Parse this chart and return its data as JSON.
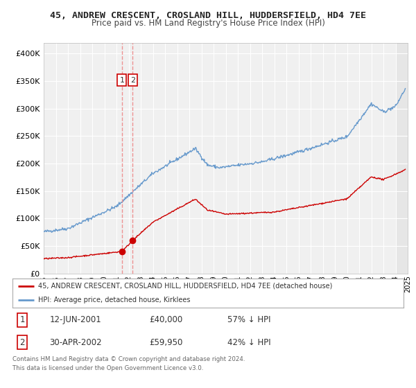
{
  "title": "45, ANDREW CRESCENT, CROSLAND HILL, HUDDERSFIELD, HD4 7EE",
  "subtitle": "Price paid vs. HM Land Registry's House Price Index (HPI)",
  "ylim": [
    0,
    420000
  ],
  "yticks": [
    0,
    50000,
    100000,
    150000,
    200000,
    250000,
    300000,
    350000,
    400000
  ],
  "ytick_labels": [
    "£0",
    "£50K",
    "£100K",
    "£150K",
    "£200K",
    "£250K",
    "£300K",
    "£350K",
    "£400K"
  ],
  "xlim": [
    1995,
    2025
  ],
  "red_line_label": "45, ANDREW CRESCENT, CROSLAND HILL, HUDDERSFIELD, HD4 7EE (detached house)",
  "blue_line_label": "HPI: Average price, detached house, Kirklees",
  "transaction1_date": "12-JUN-2001",
  "transaction1_price": "£40,000",
  "transaction1_hpi": "57% ↓ HPI",
  "transaction1_x": 2001.45,
  "transaction1_y": 40000,
  "transaction2_date": "30-APR-2002",
  "transaction2_price": "£59,950",
  "transaction2_hpi": "42% ↓ HPI",
  "transaction2_x": 2002.33,
  "transaction2_y": 59950,
  "vline1_x": 2001.45,
  "vline2_x": 2002.33,
  "red_color": "#cc0000",
  "blue_color": "#6699cc",
  "vline_color": "#ee8888",
  "background_color": "#f0f0f0",
  "grid_color": "#ffffff",
  "footer_text": "Contains HM Land Registry data © Crown copyright and database right 2024.\nThis data is licensed under the Open Government Licence v3.0."
}
